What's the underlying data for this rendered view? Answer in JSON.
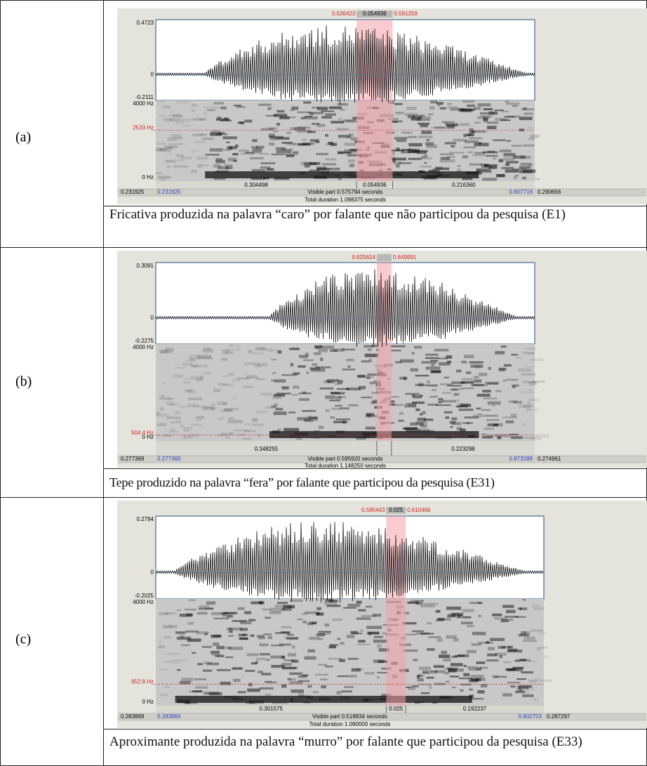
{
  "rows": [
    {
      "label": "(a)",
      "figure": {
        "selection": {
          "start": "0.536423",
          "length": "0.054936",
          "end": "0.591359"
        },
        "amplitude": {
          "max": "0.4723",
          "zero": "0",
          "min": "-0.2111"
        },
        "frequency": {
          "max": "4000 Hz",
          "cursor": "2533 Hz",
          "min": "0 Hz"
        },
        "segments": {
          "left": "0.304498",
          "middle": "0.054936",
          "right": "0.216360"
        },
        "window": {
          "hidden_left": "0.231925",
          "start": "0.231925",
          "visible": "Visible part 0.575794 seconds",
          "end": "0.807719",
          "hidden_right": "0.290656"
        },
        "total": "Total duration 1.098375 seconds"
      },
      "caption": "Fricativa produzida na palavra “caro” por falante que não participou da pesquisa (E1)"
    },
    {
      "label": "(b)",
      "figure": {
        "selection": {
          "start": "0.625624",
          "end": "0.649991"
        },
        "amplitude": {
          "max": "0.3091",
          "zero": "0",
          "min": "-0.2275"
        },
        "frequency": {
          "max": "4000 Hz",
          "cursor": "504.4 Hz",
          "min": "0 Hz"
        },
        "segments": {
          "left": "0.348255",
          "right": "0.223298"
        },
        "window": {
          "hidden_left": "0.277369",
          "start": "0.277369",
          "visible": "Visible part 0.595920 seconds",
          "end": "0.873289",
          "hidden_right": "0.274961"
        },
        "total": "Total duration 1.148250 seconds"
      },
      "caption": "Tepe produzido na palavra “fera” por falante que participou da pesquisa (E31)"
    },
    {
      "label": "(c)",
      "figure": {
        "selection": {
          "start": "0.585443",
          "length": "0.025",
          "end": "0.610466"
        },
        "amplitude": {
          "max": "0.2794",
          "zero": "0",
          "min": "-0.2025"
        },
        "frequency": {
          "max": "4000 Hz",
          "cursor": "952.9 Hz",
          "min": "0 Hz"
        },
        "segments": {
          "left": "0.301575",
          "middle": "0.025",
          "right": "0.192237"
        },
        "window": {
          "hidden_left": "0.283869",
          "start": "0.283869",
          "visible": "Visible part 0.518834 seconds",
          "end": "0.802703",
          "hidden_right": "0.287297"
        },
        "total": "Total duration 1.090000 seconds"
      },
      "caption": "Aproximante produzida na palavra “murro” por falante que participou da pesquisa (E33)"
    }
  ]
}
